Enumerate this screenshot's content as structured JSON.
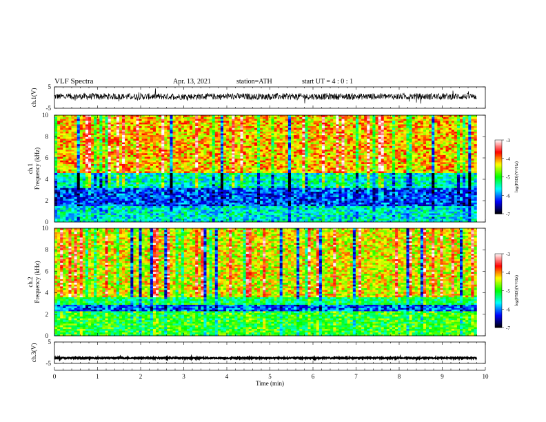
{
  "header": {
    "title": "VLF  Spectra",
    "date": "Apr. 13, 2021",
    "station": "station=ATH",
    "start_ut": "start  UT  =   4  : 0   : 1"
  },
  "chart_data": [
    {
      "type": "line",
      "name": "ch1-waveform",
      "ylabel": "ch.1(V)",
      "ylim": [
        -5,
        5
      ],
      "yticks": [
        "5",
        "-5"
      ],
      "x_range_min": [
        0,
        9.8
      ],
      "approx_level": 0.5,
      "approx_noise_amplitude": 1.5
    },
    {
      "type": "heatmap",
      "name": "ch1-spectrogram",
      "ylabel": "ch.1\nFrequency (kHz)",
      "ylim": [
        0,
        10
      ],
      "yticks": [
        "0",
        "2",
        "4",
        "6",
        "8",
        "10"
      ],
      "x_range_min": [
        0,
        9.8
      ],
      "colorbar": {
        "label": "log(PSD)(V²/Hz)",
        "range": [
          -7,
          -3
        ],
        "ticks": [
          "-3",
          "-4",
          "-5",
          "-6",
          "-7"
        ]
      },
      "bands_khz": [
        {
          "from": 0,
          "to": 1.5,
          "level": -5.6
        },
        {
          "from": 1.5,
          "to": 3.2,
          "level": -6.2
        },
        {
          "from": 3.2,
          "to": 4.6,
          "level": -5.5
        },
        {
          "from": 4.6,
          "to": 10,
          "level": -4.2
        }
      ]
    },
    {
      "type": "heatmap",
      "name": "ch2-spectrogram",
      "ylabel": "ch.2\nFrequency (kHz)",
      "ylim": [
        0,
        10
      ],
      "yticks": [
        "0",
        "2",
        "4",
        "6",
        "8",
        "10"
      ],
      "x_range_min": [
        0,
        9.8
      ],
      "colorbar": {
        "label": "log(PSD)(V²/Hz)",
        "range": [
          -7,
          -3
        ],
        "ticks": [
          "-3",
          "-4",
          "-5",
          "-6",
          "-7"
        ]
      },
      "bands_khz": [
        {
          "from": 0,
          "to": 2.3,
          "level": -5.0
        },
        {
          "from": 2.3,
          "to": 2.9,
          "level": -6.1
        },
        {
          "from": 2.9,
          "to": 3.6,
          "level": -5.2
        },
        {
          "from": 3.6,
          "to": 10,
          "level": -4.4
        }
      ]
    },
    {
      "type": "line",
      "name": "ch3-waveform",
      "ylabel": "ch.3(V)",
      "ylim": [
        -5,
        5
      ],
      "yticks": [
        "5",
        "-5"
      ],
      "x_range_min": [
        0,
        9.8
      ],
      "approx_level": -2.5,
      "approx_noise_amplitude": 0.3
    }
  ],
  "xaxis": {
    "label": "Time  (min)",
    "ticks": [
      "0",
      "1",
      "2",
      "3",
      "4",
      "5",
      "6",
      "7",
      "8",
      "9",
      "10"
    ],
    "range": [
      0,
      10
    ]
  },
  "colors": {
    "colormap": [
      "#000000",
      "#0000ff",
      "#00ffff",
      "#00ff00",
      "#ffff00",
      "#ff0000",
      "#ffffff"
    ]
  }
}
